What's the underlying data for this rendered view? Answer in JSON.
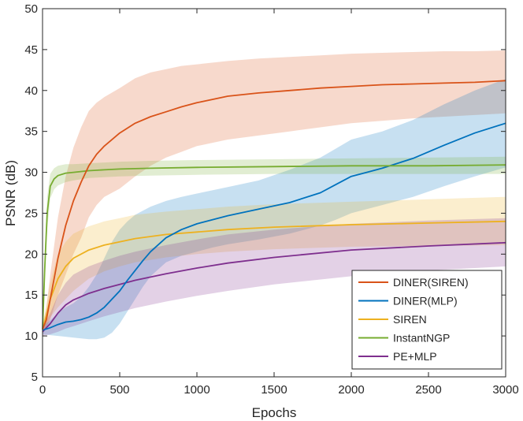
{
  "chart_data": {
    "type": "line",
    "title": "",
    "xlabel": "Epochs",
    "ylabel": "PSNR (dB)",
    "xlim": [
      0,
      3000
    ],
    "ylim": [
      5,
      50
    ],
    "xticks": [
      0,
      500,
      1000,
      1500,
      2000,
      2500,
      3000
    ],
    "yticks": [
      5,
      10,
      15,
      20,
      25,
      30,
      35,
      40,
      45,
      50
    ],
    "grid": false,
    "legend_position": "bottom-right",
    "series": [
      {
        "name": "DINER(SIREN)",
        "color": "#D95319",
        "x": [
          0,
          25,
          50,
          100,
          150,
          200,
          250,
          300,
          350,
          400,
          500,
          600,
          700,
          800,
          900,
          1000,
          1200,
          1400,
          1600,
          1800,
          2000,
          2200,
          2400,
          2600,
          2800,
          3000
        ],
        "mean": [
          10.8,
          12.0,
          14.5,
          19.5,
          23.5,
          26.5,
          28.8,
          30.8,
          32.2,
          33.2,
          34.8,
          36.0,
          36.8,
          37.4,
          38.0,
          38.5,
          39.3,
          39.7,
          40.0,
          40.3,
          40.5,
          40.7,
          40.8,
          40.9,
          41.0,
          41.2
        ],
        "lower": [
          10.3,
          11.0,
          12.0,
          15.0,
          17.5,
          20.0,
          22.0,
          24.5,
          26.0,
          27.0,
          28.0,
          29.5,
          30.8,
          31.8,
          32.5,
          33.2,
          34.0,
          34.5,
          35.0,
          35.5,
          36.0,
          36.3,
          36.6,
          36.8,
          37.0,
          37.2
        ],
        "upper": [
          11.3,
          13.5,
          17.5,
          24.5,
          29.5,
          33.0,
          35.5,
          37.5,
          38.5,
          39.2,
          40.3,
          41.5,
          42.2,
          42.6,
          43.0,
          43.2,
          43.6,
          43.9,
          44.1,
          44.3,
          44.5,
          44.6,
          44.7,
          44.8,
          44.8,
          44.9
        ]
      },
      {
        "name": "DINER(MLP)",
        "color": "#0072BD",
        "x": [
          0,
          50,
          100,
          150,
          200,
          250,
          300,
          350,
          400,
          450,
          500,
          550,
          600,
          650,
          700,
          800,
          900,
          1000,
          1100,
          1200,
          1400,
          1600,
          1800,
          1900,
          2000,
          2100,
          2200,
          2400,
          2600,
          2800,
          3000
        ],
        "mean": [
          10.7,
          11.0,
          11.4,
          11.7,
          11.8,
          12.0,
          12.3,
          12.8,
          13.5,
          14.5,
          15.5,
          16.8,
          18.0,
          19.2,
          20.3,
          22.0,
          23.0,
          23.7,
          24.2,
          24.7,
          25.5,
          26.3,
          27.5,
          28.5,
          29.5,
          30.0,
          30.5,
          31.7,
          33.3,
          34.8,
          36.0
        ],
        "lower": [
          10.2,
          10.1,
          10.0,
          9.9,
          9.8,
          9.7,
          9.6,
          9.6,
          9.8,
          10.4,
          11.5,
          13.0,
          14.5,
          16.0,
          17.3,
          19.0,
          19.8,
          20.3,
          20.8,
          21.2,
          21.8,
          22.5,
          23.5,
          24.2,
          25.0,
          25.5,
          26.0,
          27.0,
          28.3,
          29.5,
          30.6
        ],
        "upper": [
          11.2,
          11.9,
          12.8,
          13.5,
          14.0,
          14.8,
          16.0,
          17.5,
          19.5,
          21.5,
          23.0,
          24.0,
          24.8,
          25.3,
          25.8,
          26.5,
          27.0,
          27.4,
          27.8,
          28.2,
          29.0,
          30.3,
          31.8,
          32.9,
          34.0,
          34.5,
          35.0,
          36.4,
          38.3,
          40.0,
          41.4
        ]
      },
      {
        "name": "SIREN",
        "color": "#EDB120",
        "x": [
          0,
          25,
          50,
          100,
          150,
          200,
          300,
          400,
          500,
          600,
          800,
          1000,
          1200,
          1500,
          2000,
          2500,
          3000
        ],
        "mean": [
          10.8,
          12.5,
          14.5,
          17.0,
          18.5,
          19.5,
          20.5,
          21.1,
          21.5,
          21.9,
          22.4,
          22.7,
          23.0,
          23.3,
          23.6,
          23.8,
          24.0
        ],
        "lower": [
          10.3,
          11.3,
          12.3,
          13.5,
          14.5,
          15.5,
          17.0,
          17.9,
          18.5,
          19.0,
          19.6,
          20.0,
          20.3,
          20.6,
          20.9,
          21.0,
          21.1
        ],
        "upper": [
          11.3,
          13.7,
          16.5,
          20.0,
          21.5,
          22.5,
          23.4,
          24.0,
          24.4,
          24.8,
          25.2,
          25.5,
          25.8,
          26.1,
          26.4,
          26.7,
          27.0
        ]
      },
      {
        "name": "InstantNGP",
        "color": "#77AC30",
        "x": [
          0,
          15,
          30,
          50,
          75,
          100,
          150,
          200,
          300,
          400,
          500,
          700,
          1000,
          1500,
          2000,
          2500,
          3000
        ],
        "mean": [
          10.8,
          18.5,
          25.0,
          28.3,
          29.2,
          29.6,
          29.9,
          30.0,
          30.2,
          30.3,
          30.4,
          30.5,
          30.6,
          30.7,
          30.8,
          30.8,
          30.9
        ],
        "lower": [
          10.3,
          16.5,
          23.0,
          26.8,
          27.9,
          28.4,
          28.8,
          29.0,
          29.3,
          29.4,
          29.5,
          29.6,
          29.7,
          29.8,
          29.8,
          29.8,
          29.8
        ],
        "upper": [
          11.3,
          20.5,
          27.0,
          29.8,
          30.5,
          30.8,
          31.0,
          31.0,
          31.1,
          31.2,
          31.3,
          31.4,
          31.5,
          31.6,
          31.7,
          31.8,
          31.9
        ]
      },
      {
        "name": "PE+MLP",
        "color": "#7E2F8E",
        "x": [
          0,
          50,
          100,
          150,
          200,
          300,
          400,
          500,
          600,
          800,
          1000,
          1200,
          1500,
          2000,
          2500,
          3000
        ],
        "mean": [
          10.5,
          11.5,
          12.8,
          13.8,
          14.4,
          15.2,
          15.8,
          16.3,
          16.8,
          17.6,
          18.3,
          18.9,
          19.6,
          20.5,
          21.0,
          21.4
        ],
        "lower": [
          10.0,
          10.2,
          10.5,
          10.9,
          11.2,
          11.8,
          12.4,
          12.9,
          13.4,
          14.2,
          14.9,
          15.5,
          16.3,
          17.3,
          18.0,
          18.5
        ],
        "upper": [
          11.0,
          12.8,
          15.0,
          16.5,
          17.5,
          18.5,
          19.2,
          19.8,
          20.3,
          21.1,
          21.8,
          22.4,
          23.0,
          23.7,
          24.1,
          24.4
        ]
      }
    ]
  }
}
